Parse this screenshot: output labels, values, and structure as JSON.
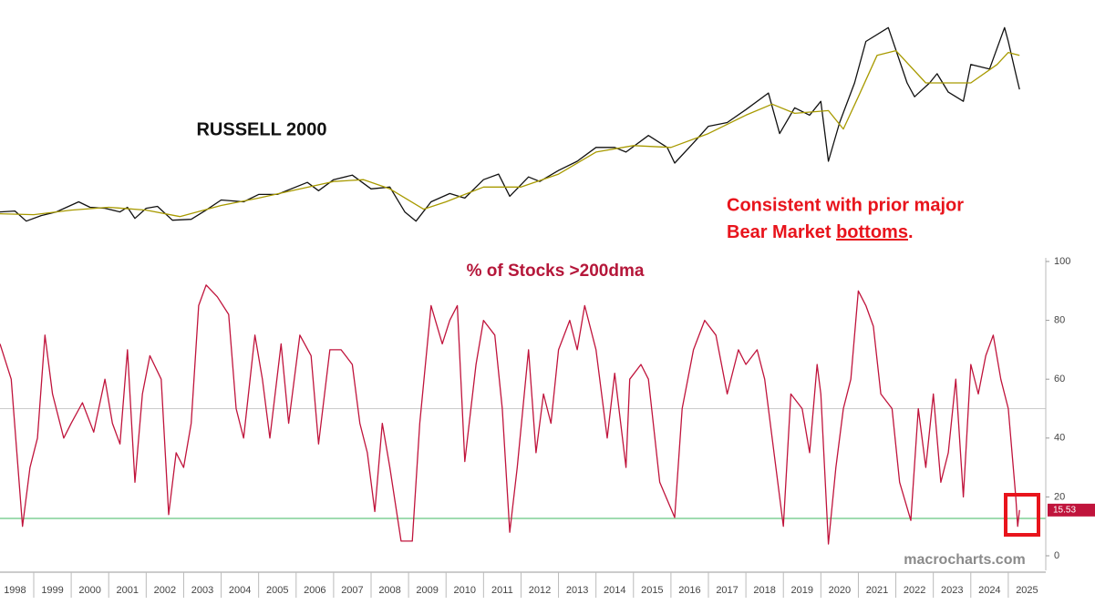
{
  "chart_data": [
    {
      "type": "line",
      "title": "RUSSELL 2000",
      "note_lines": [
        "Consistent with prior major",
        "Bear Market"
      ],
      "note_underlined": "bottoms",
      "note_end": ".",
      "xlim": [
        1998.1,
        2026.0
      ],
      "ylim": [
        100,
        2750
      ],
      "series": [
        {
          "color": "#111111",
          "x": [
            1998.1,
            1998.5,
            1998.8,
            1999.2,
            1999.6,
            2000.2,
            2000.5,
            2000.9,
            2001.3,
            2001.5,
            2001.7,
            2002.0,
            2002.3,
            2002.7,
            2003.2,
            2003.6,
            2004.0,
            2004.6,
            2005.0,
            2005.5,
            2006.3,
            2006.6,
            2007.0,
            2007.5,
            2008.0,
            2008.5,
            2008.9,
            2009.2,
            2009.6,
            2010.1,
            2010.5,
            2011.0,
            2011.4,
            2011.7,
            2012.2,
            2012.5,
            2013.0,
            2013.5,
            2014.0,
            2014.5,
            2014.8,
            2015.4,
            2015.9,
            2016.1,
            2016.6,
            2017.0,
            2017.5,
            2018.0,
            2018.6,
            2018.9,
            2019.3,
            2019.7,
            2020.0,
            2020.2,
            2020.5,
            2020.9,
            2021.2,
            2021.8,
            2022.3,
            2022.5,
            2022.9,
            2023.1,
            2023.4,
            2023.8,
            2024.0,
            2024.5,
            2024.9,
            2025.0,
            2025.2,
            2025.3
          ],
          "values": [
            450,
            460,
            350,
            410,
            450,
            560,
            500,
            490,
            450,
            500,
            380,
            490,
            510,
            360,
            370,
            470,
            580,
            560,
            640,
            640,
            770,
            680,
            800,
            850,
            700,
            720,
            450,
            350,
            560,
            650,
            600,
            800,
            860,
            620,
            830,
            780,
            900,
            1000,
            1150,
            1150,
            1100,
            1280,
            1150,
            980,
            1200,
            1380,
            1420,
            1560,
            1740,
            1300,
            1580,
            1500,
            1650,
            1000,
            1420,
            1850,
            2300,
            2450,
            1850,
            1700,
            1850,
            1950,
            1750,
            1650,
            2050,
            2000,
            2450,
            2300,
            1950,
            1780
          ]
        },
        {
          "color": "#a89a00",
          "x": [
            1998.1,
            1999.0,
            2000.0,
            2001.0,
            2002.0,
            2002.9,
            2004.0,
            2005.0,
            2006.0,
            2007.0,
            2007.8,
            2008.5,
            2009.4,
            2010.0,
            2011.0,
            2012.0,
            2013.0,
            2014.0,
            2015.0,
            2016.0,
            2017.0,
            2018.0,
            2018.7,
            2019.3,
            2020.2,
            2020.6,
            2021.0,
            2021.5,
            2022.0,
            2022.8,
            2023.5,
            2024.0,
            2024.7,
            2025.0,
            2025.3
          ],
          "values": [
            430,
            420,
            470,
            500,
            470,
            400,
            520,
            600,
            690,
            780,
            800,
            700,
            480,
            560,
            720,
            720,
            860,
            1100,
            1170,
            1150,
            1300,
            1500,
            1620,
            1520,
            1550,
            1350,
            1700,
            2150,
            2200,
            1850,
            1850,
            1850,
            2050,
            2180,
            2150
          ]
        }
      ]
    },
    {
      "type": "line",
      "title": "% of Stocks >200dma",
      "watermark": "macrocharts.com",
      "xlim": [
        1998.1,
        2026.0
      ],
      "ylim": [
        0,
        100
      ],
      "yticks": [
        0,
        20,
        40,
        60,
        80,
        100
      ],
      "xticks": [
        1998,
        1999,
        2000,
        2001,
        2002,
        2003,
        2004,
        2005,
        2006,
        2007,
        2008,
        2009,
        2010,
        2011,
        2012,
        2013,
        2014,
        2015,
        2016,
        2017,
        2018,
        2019,
        2020,
        2021,
        2022,
        2023,
        2024,
        2025
      ],
      "hlines": [
        {
          "value": 50,
          "color": "#cccccc"
        },
        {
          "value": 12.7,
          "color": "#9fdcb0"
        }
      ],
      "last_label": "15.53",
      "series": [
        {
          "color": "#c0143c",
          "x": [
            1998.1,
            1998.4,
            1998.7,
            1998.9,
            1999.1,
            1999.3,
            1999.5,
            1999.8,
            2000.0,
            2000.3,
            2000.6,
            2000.9,
            2001.1,
            2001.3,
            2001.5,
            2001.7,
            2001.9,
            2002.1,
            2002.4,
            2002.6,
            2002.8,
            2003.0,
            2003.2,
            2003.4,
            2003.6,
            2003.9,
            2004.2,
            2004.4,
            2004.6,
            2004.9,
            2005.1,
            2005.3,
            2005.6,
            2005.8,
            2006.1,
            2006.4,
            2006.6,
            2006.9,
            2007.2,
            2007.5,
            2007.7,
            2007.9,
            2008.1,
            2008.3,
            2008.5,
            2008.8,
            2009.1,
            2009.3,
            2009.6,
            2009.9,
            2010.1,
            2010.3,
            2010.5,
            2010.8,
            2011.0,
            2011.3,
            2011.5,
            2011.7,
            2011.9,
            2012.2,
            2012.4,
            2012.6,
            2012.8,
            2013.0,
            2013.3,
            2013.5,
            2013.7,
            2014.0,
            2014.3,
            2014.5,
            2014.8,
            2014.9,
            2015.2,
            2015.4,
            2015.7,
            2016.1,
            2016.3,
            2016.6,
            2016.9,
            2017.2,
            2017.5,
            2017.8,
            2018.0,
            2018.3,
            2018.5,
            2018.8,
            2019.0,
            2019.2,
            2019.5,
            2019.7,
            2019.9,
            2020.0,
            2020.2,
            2020.4,
            2020.6,
            2020.8,
            2021.0,
            2021.2,
            2021.4,
            2021.6,
            2021.9,
            2022.1,
            2022.4,
            2022.6,
            2022.8,
            2023.0,
            2023.2,
            2023.4,
            2023.6,
            2023.8,
            2024.0,
            2024.2,
            2024.4,
            2024.6,
            2024.8,
            2025.0,
            2025.2,
            2025.25,
            2025.3
          ],
          "values": [
            72,
            60,
            10,
            30,
            40,
            75,
            55,
            40,
            45,
            52,
            42,
            60,
            45,
            38,
            70,
            25,
            55,
            68,
            60,
            14,
            35,
            30,
            45,
            85,
            92,
            88,
            82,
            50,
            40,
            75,
            60,
            40,
            72,
            45,
            75,
            68,
            38,
            70,
            70,
            65,
            45,
            35,
            15,
            45,
            30,
            5,
            5,
            45,
            85,
            72,
            80,
            85,
            32,
            65,
            80,
            75,
            50,
            8,
            30,
            70,
            35,
            55,
            45,
            70,
            80,
            70,
            85,
            70,
            40,
            62,
            30,
            60,
            65,
            60,
            25,
            13,
            50,
            70,
            80,
            75,
            55,
            70,
            65,
            70,
            60,
            30,
            10,
            55,
            50,
            35,
            65,
            55,
            4,
            30,
            50,
            60,
            90,
            85,
            78,
            55,
            50,
            25,
            12,
            50,
            30,
            55,
            25,
            35,
            60,
            20,
            65,
            55,
            68,
            75,
            60,
            50,
            20,
            10,
            15.53
          ]
        }
      ]
    }
  ]
}
